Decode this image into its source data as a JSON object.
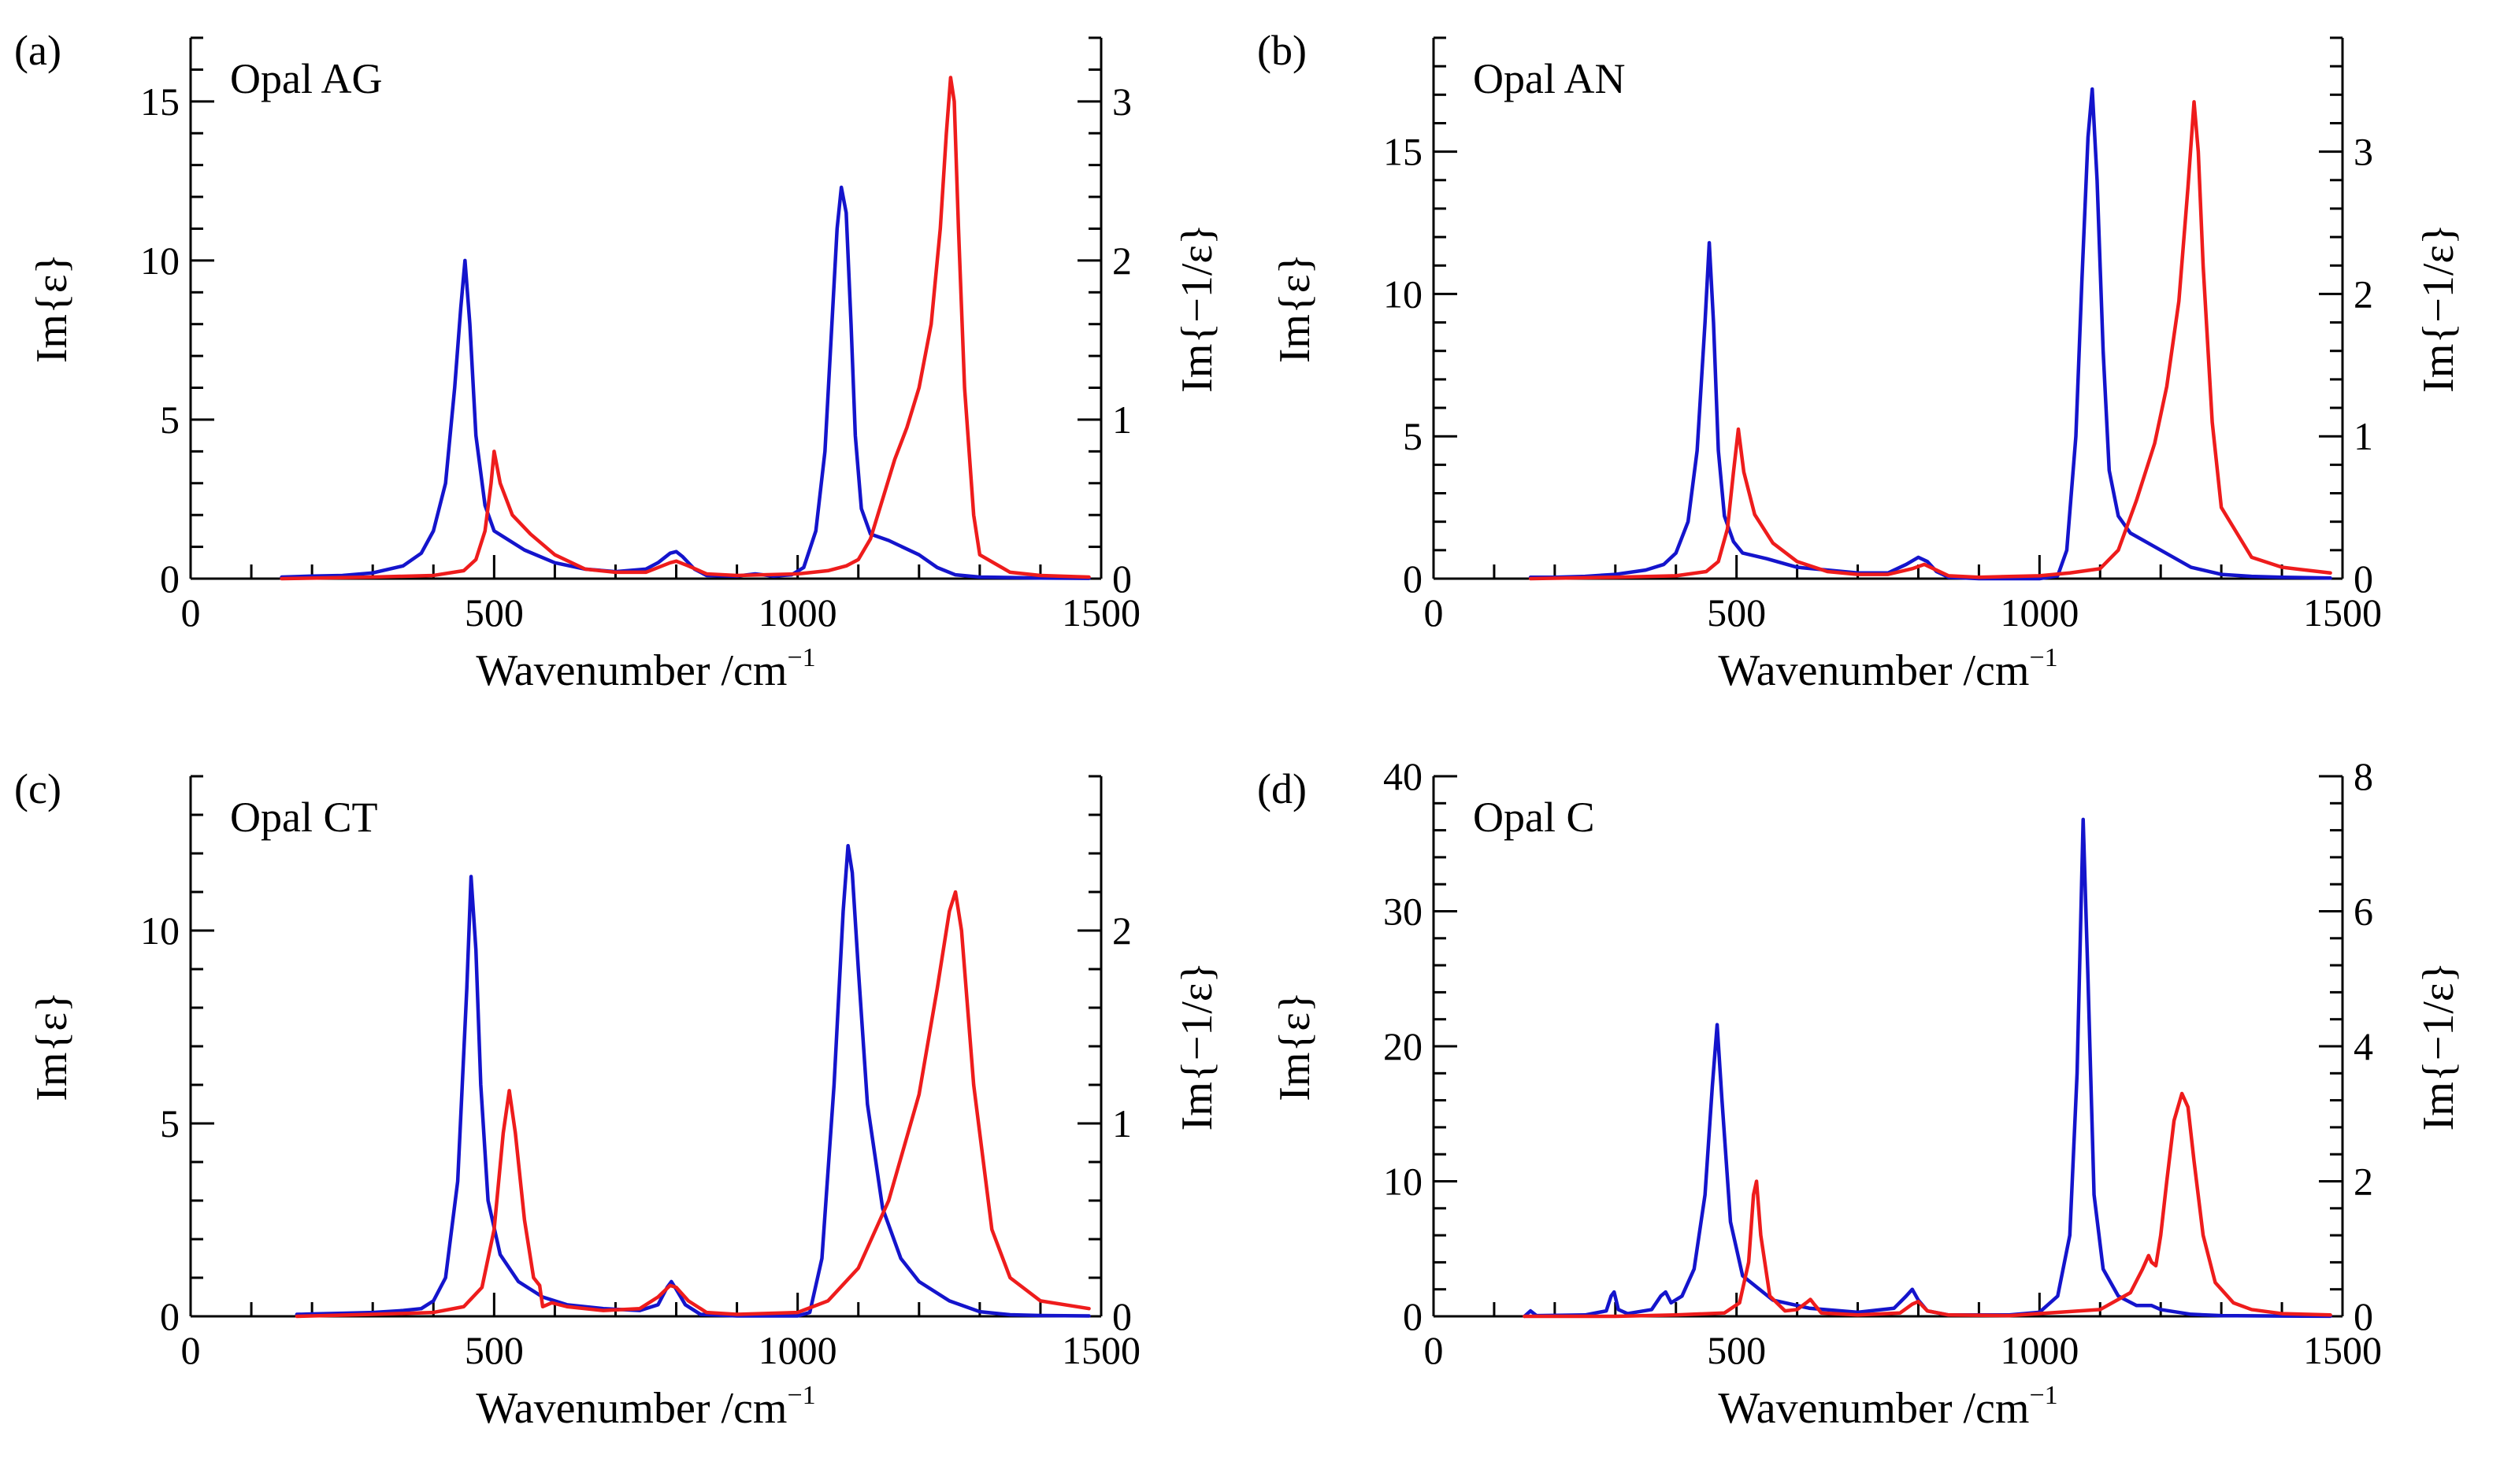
{
  "figure": {
    "background": "#ffffff"
  },
  "colors": {
    "eps": "#1414cc",
    "loss": "#ee1c1c",
    "axis": "#000000"
  },
  "chart_data": [
    {
      "type": "line",
      "panel_label": "(a)",
      "title": "Opal AG",
      "xlabel": "Wavenumber /cm",
      "xlabel_sup": "−1",
      "ylabel_left": "Im{ε}",
      "ylabel_right": "Im{−1/ε}",
      "xlim": [
        0,
        1500
      ],
      "ylim_left": [
        0,
        17
      ],
      "ylim_right": [
        0,
        3.4
      ],
      "xticks": [
        0,
        500,
        1000,
        1500
      ],
      "xticks_minor_step": 100,
      "yticks_left": [
        0,
        5,
        10,
        15
      ],
      "yticks_left_minor_step": 1,
      "yticks_right": [
        0,
        1,
        2,
        3
      ],
      "yticks_right_minor_step": 0.2,
      "series": [
        {
          "name": "Im{ε}",
          "axis": "left",
          "color": "#1414cc",
          "x": [
            150,
            200,
            250,
            300,
            350,
            380,
            400,
            420,
            435,
            445,
            452,
            460,
            470,
            485,
            500,
            550,
            600,
            650,
            700,
            750,
            770,
            790,
            800,
            810,
            830,
            850,
            900,
            930,
            960,
            990,
            1010,
            1030,
            1045,
            1055,
            1065,
            1072,
            1080,
            1088,
            1095,
            1105,
            1120,
            1150,
            1200,
            1230,
            1260,
            1300,
            1400,
            1480
          ],
          "y": [
            0.05,
            0.08,
            0.1,
            0.18,
            0.4,
            0.8,
            1.5,
            3,
            6,
            8.5,
            10,
            8,
            4.5,
            2.3,
            1.5,
            0.9,
            0.5,
            0.3,
            0.22,
            0.3,
            0.5,
            0.8,
            0.85,
            0.7,
            0.3,
            0.1,
            0.08,
            0.15,
            0.08,
            0.12,
            0.35,
            1.5,
            4,
            7.5,
            11,
            12.3,
            11.5,
            8,
            4.5,
            2.2,
            1.4,
            1.2,
            0.75,
            0.35,
            0.12,
            0.05,
            0.02,
            0.01
          ]
        },
        {
          "name": "Im{−1/ε}",
          "axis": "right",
          "color": "#ee1c1c",
          "x": [
            150,
            300,
            400,
            450,
            470,
            485,
            495,
            500,
            510,
            530,
            560,
            600,
            650,
            700,
            750,
            790,
            800,
            820,
            850,
            900,
            1000,
            1050,
            1080,
            1100,
            1120,
            1140,
            1160,
            1180,
            1200,
            1220,
            1235,
            1245,
            1252,
            1258,
            1265,
            1275,
            1290,
            1300,
            1350,
            1400,
            1480
          ],
          "y": [
            0,
            0.01,
            0.02,
            0.05,
            0.12,
            0.3,
            0.6,
            0.8,
            0.6,
            0.4,
            0.28,
            0.15,
            0.06,
            0.04,
            0.04,
            0.1,
            0.11,
            0.08,
            0.03,
            0.02,
            0.03,
            0.05,
            0.08,
            0.12,
            0.25,
            0.5,
            0.75,
            0.95,
            1.2,
            1.6,
            2.2,
            2.8,
            3.15,
            3.0,
            2.2,
            1.2,
            0.4,
            0.15,
            0.04,
            0.02,
            0.01
          ]
        }
      ]
    },
    {
      "type": "line",
      "panel_label": "(b)",
      "title": "Opal AN",
      "xlabel": "Wavenumber /cm",
      "xlabel_sup": "−1",
      "ylabel_left": "Im{ε}",
      "ylabel_right": "Im{−1/ε}",
      "xlim": [
        0,
        1500
      ],
      "ylim_left": [
        0,
        19
      ],
      "ylim_right": [
        0,
        3.8
      ],
      "xticks": [
        0,
        500,
        1000,
        1500
      ],
      "xticks_minor_step": 100,
      "yticks_left": [
        0,
        5,
        10,
        15
      ],
      "yticks_left_minor_step": 1,
      "yticks_right": [
        0,
        1,
        2,
        3
      ],
      "yticks_right_minor_step": 0.2,
      "series": [
        {
          "name": "Im{ε}",
          "axis": "left",
          "color": "#1414cc",
          "x": [
            160,
            200,
            250,
            300,
            350,
            380,
            400,
            420,
            435,
            448,
            455,
            462,
            470,
            480,
            495,
            510,
            550,
            600,
            650,
            700,
            750,
            780,
            800,
            815,
            830,
            850,
            900,
            1000,
            1030,
            1045,
            1060,
            1070,
            1080,
            1087,
            1095,
            1105,
            1115,
            1130,
            1150,
            1200,
            1250,
            1300,
            1350,
            1400,
            1480
          ],
          "y": [
            0.05,
            0.05,
            0.08,
            0.15,
            0.3,
            0.5,
            0.9,
            2.0,
            4.5,
            9,
            11.8,
            9,
            4.5,
            2.2,
            1.3,
            0.9,
            0.7,
            0.4,
            0.3,
            0.2,
            0.2,
            0.5,
            0.75,
            0.6,
            0.25,
            0.05,
            0,
            0,
            0.1,
            1,
            5,
            10.5,
            15.5,
            17.2,
            14,
            8,
            3.8,
            2.2,
            1.6,
            1,
            0.4,
            0.15,
            0.08,
            0.05,
            0.02
          ]
        },
        {
          "name": "Im{−1/ε}",
          "axis": "right",
          "color": "#ee1c1c",
          "x": [
            160,
            300,
            400,
            450,
            470,
            485,
            495,
            503,
            512,
            530,
            560,
            600,
            650,
            700,
            750,
            790,
            810,
            830,
            850,
            900,
            1000,
            1050,
            1100,
            1130,
            1160,
            1190,
            1210,
            1230,
            1245,
            1255,
            1262,
            1270,
            1285,
            1300,
            1350,
            1400,
            1480
          ],
          "y": [
            0,
            0.01,
            0.02,
            0.05,
            0.12,
            0.35,
            0.75,
            1.05,
            0.75,
            0.45,
            0.25,
            0.12,
            0.05,
            0.03,
            0.03,
            0.07,
            0.1,
            0.06,
            0.02,
            0.01,
            0.02,
            0.04,
            0.07,
            0.2,
            0.55,
            0.95,
            1.35,
            1.95,
            2.75,
            3.35,
            3.0,
            2.2,
            1.1,
            0.5,
            0.15,
            0.08,
            0.04
          ]
        }
      ]
    },
    {
      "type": "line",
      "panel_label": "(c)",
      "title": "Opal CT",
      "xlabel": "Wavenumber /cm",
      "xlabel_sup": "−1",
      "ylabel_left": "Im{ε}",
      "ylabel_right": "Im{−1/ε}",
      "xlim": [
        0,
        1500
      ],
      "ylim_left": [
        0,
        14
      ],
      "ylim_right": [
        0,
        2.8
      ],
      "xticks": [
        0,
        500,
        1000,
        1500
      ],
      "xticks_minor_step": 100,
      "yticks_left": [
        0,
        5,
        10
      ],
      "yticks_left_minor_step": 1,
      "yticks_right": [
        0,
        1,
        2
      ],
      "yticks_right_minor_step": 0.2,
      "series": [
        {
          "name": "Im{ε}",
          "axis": "left",
          "color": "#1414cc",
          "x": [
            175,
            200,
            250,
            300,
            350,
            380,
            400,
            420,
            440,
            455,
            462,
            470,
            478,
            490,
            510,
            540,
            580,
            620,
            680,
            740,
            770,
            785,
            792,
            800,
            815,
            840,
            900,
            1000,
            1020,
            1040,
            1060,
            1075,
            1083,
            1090,
            1100,
            1115,
            1140,
            1170,
            1200,
            1250,
            1300,
            1350,
            1400,
            1480
          ],
          "y": [
            0.05,
            0.06,
            0.08,
            0.1,
            0.15,
            0.2,
            0.4,
            1,
            3.5,
            8.5,
            11.4,
            9.5,
            6,
            3,
            1.6,
            0.9,
            0.5,
            0.3,
            0.2,
            0.15,
            0.3,
            0.75,
            0.9,
            0.7,
            0.3,
            0.05,
            0.01,
            0.01,
            0.1,
            1.5,
            6,
            10.5,
            12.2,
            11.5,
            9,
            5.5,
            2.8,
            1.5,
            0.9,
            0.4,
            0.12,
            0.04,
            0.02,
            0.01
          ]
        },
        {
          "name": "Im{−1/ε}",
          "axis": "right",
          "color": "#ee1c1c",
          "x": [
            175,
            300,
            400,
            450,
            480,
            500,
            515,
            525,
            535,
            550,
            565,
            575,
            580,
            595,
            620,
            680,
            740,
            770,
            790,
            800,
            820,
            850,
            900,
            1000,
            1050,
            1100,
            1150,
            1200,
            1230,
            1250,
            1260,
            1270,
            1290,
            1320,
            1350,
            1400,
            1480
          ],
          "y": [
            0,
            0.01,
            0.02,
            0.05,
            0.15,
            0.45,
            0.95,
            1.17,
            0.95,
            0.5,
            0.2,
            0.16,
            0.05,
            0.07,
            0.05,
            0.03,
            0.04,
            0.1,
            0.16,
            0.15,
            0.08,
            0.02,
            0.01,
            0.02,
            0.08,
            0.25,
            0.6,
            1.15,
            1.7,
            2.1,
            2.2,
            2.0,
            1.2,
            0.45,
            0.2,
            0.08,
            0.04
          ]
        }
      ]
    },
    {
      "type": "line",
      "panel_label": "(d)",
      "title": "Opal C",
      "xlabel": "Wavenumber /cm",
      "xlabel_sup": "−1",
      "ylabel_left": "Im{ε}",
      "ylabel_right": "Im{−1/ε}",
      "xlim": [
        0,
        1500
      ],
      "ylim_left": [
        0,
        40
      ],
      "ylim_right": [
        0,
        8
      ],
      "xticks": [
        0,
        500,
        1000,
        1500
      ],
      "xticks_minor_step": 100,
      "yticks_left": [
        0,
        10,
        20,
        30,
        40
      ],
      "yticks_left_minor_step": 2,
      "yticks_right": [
        0,
        2,
        4,
        6,
        8
      ],
      "yticks_right_minor_step": 0.4,
      "series": [
        {
          "name": "Im{ε}",
          "axis": "left",
          "color": "#1414cc",
          "x": [
            150,
            160,
            170,
            250,
            285,
            293,
            298,
            305,
            320,
            360,
            375,
            383,
            392,
            410,
            430,
            448,
            460,
            468,
            476,
            490,
            510,
            560,
            620,
            700,
            760,
            780,
            790,
            800,
            815,
            850,
            950,
            1000,
            1030,
            1050,
            1062,
            1072,
            1080,
            1090,
            1105,
            1130,
            1160,
            1185,
            1200,
            1250,
            1300,
            1400,
            1480
          ],
          "y": [
            0,
            0.4,
            0.05,
            0.1,
            0.4,
            1.5,
            1.8,
            0.5,
            0.2,
            0.5,
            1.5,
            1.8,
            1.0,
            1.5,
            3.5,
            9,
            17,
            21.6,
            16,
            7,
            3,
            1.2,
            0.6,
            0.3,
            0.6,
            1.5,
            2,
            1.2,
            0.4,
            0.1,
            0.1,
            0.3,
            1.5,
            6,
            18,
            36.8,
            25,
            9,
            3.5,
            1.5,
            0.8,
            0.8,
            0.5,
            0.15,
            0.05,
            0.02,
            0.01
          ]
        },
        {
          "name": "Im{−1/ε}",
          "axis": "right",
          "color": "#ee1c1c",
          "x": [
            150,
            300,
            400,
            480,
            505,
            520,
            528,
            533,
            540,
            555,
            580,
            600,
            615,
            622,
            628,
            640,
            700,
            770,
            790,
            800,
            815,
            850,
            950,
            1100,
            1150,
            1170,
            1180,
            1185,
            1192,
            1200,
            1210,
            1222,
            1235,
            1245,
            1255,
            1270,
            1290,
            1320,
            1350,
            1400,
            1480
          ],
          "y": [
            0,
            0,
            0.02,
            0.05,
            0.2,
            0.8,
            1.8,
            2.0,
            1.2,
            0.3,
            0.08,
            0.1,
            0.2,
            0.25,
            0.18,
            0.05,
            0.02,
            0.05,
            0.18,
            0.22,
            0.08,
            0.02,
            0.01,
            0.1,
            0.35,
            0.7,
            0.9,
            0.8,
            0.75,
            1.2,
            2.0,
            2.9,
            3.3,
            3.1,
            2.3,
            1.2,
            0.5,
            0.2,
            0.1,
            0.04,
            0.02
          ]
        }
      ]
    }
  ]
}
